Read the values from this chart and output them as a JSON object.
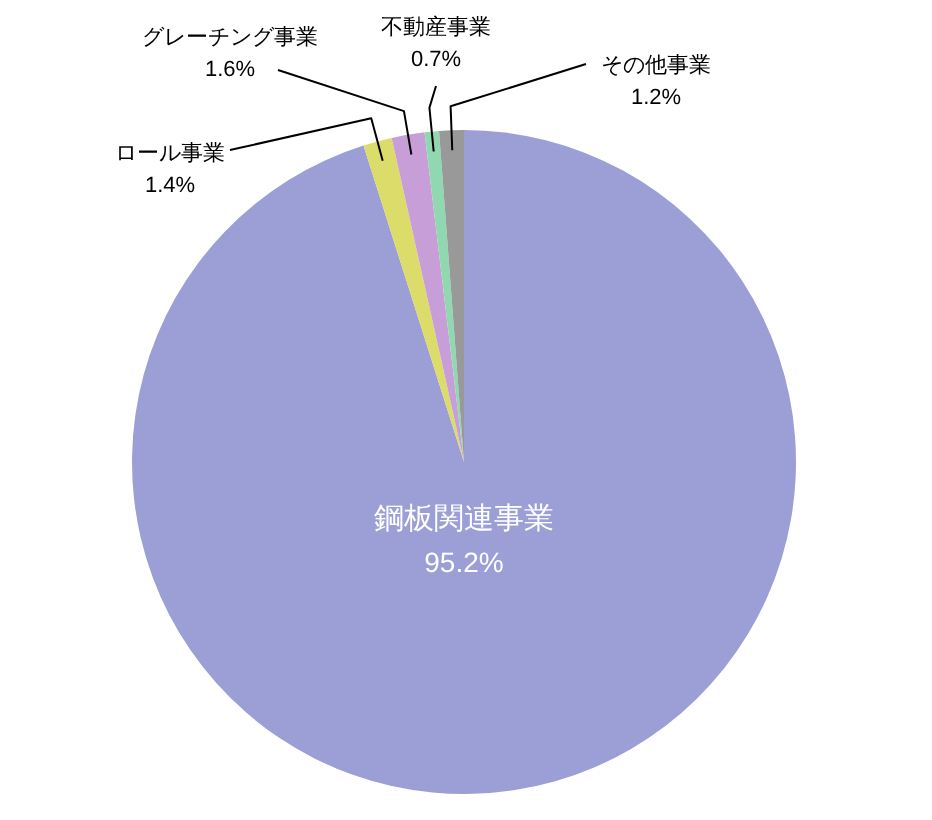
{
  "chart_data": {
    "type": "pie",
    "categories": [
      "鋼板関連事業",
      "ロール事業",
      "グレーチング事業",
      "不動産事業",
      "その他事業"
    ],
    "values": [
      95.2,
      1.4,
      1.6,
      0.7,
      1.2
    ],
    "value_labels": [
      "95.2%",
      "1.4%",
      "1.6%",
      "0.7%",
      "1.2%"
    ],
    "colors": [
      "#9c9fd6",
      "#dcdc6a",
      "#c89ed8",
      "#90d8b0",
      "#999999"
    ]
  }
}
